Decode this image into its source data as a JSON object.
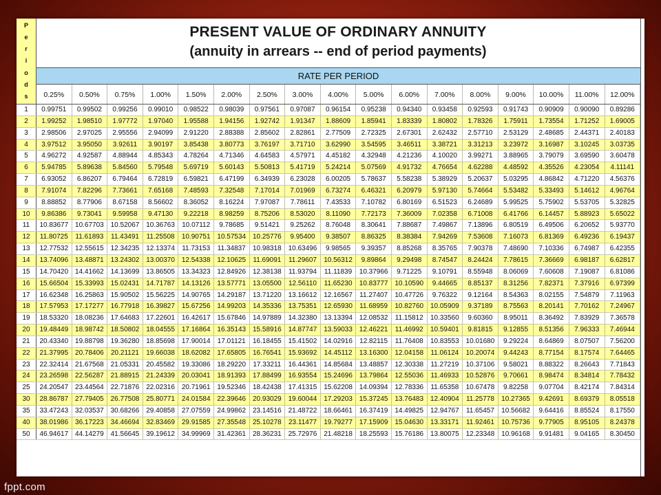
{
  "title": {
    "line1": "PRESENT VALUE OF ORDINARY ANNUITY",
    "line2": "(annuity in arrears -- end of period payments)"
  },
  "periods_header": [
    "P",
    "e",
    "r",
    "i",
    "o",
    "d",
    "s"
  ],
  "rate_label": "RATE PER PERIOD",
  "rates": [
    "0.25%",
    "0.50%",
    "0.75%",
    "1.00%",
    "1.50%",
    "2.00%",
    "2.50%",
    "3.00%",
    "4.00%",
    "5.00%",
    "6.00%",
    "7.00%",
    "8.00%",
    "9.00%",
    "10.00%",
    "11.00%",
    "12.00%"
  ],
  "table": {
    "rows": [
      {
        "period": "1",
        "values": [
          "0.99751",
          "0.99502",
          "0.99256",
          "0.99010",
          "0.98522",
          "0.98039",
          "0.97561",
          "0.97087",
          "0.96154",
          "0.95238",
          "0.94340",
          "0.93458",
          "0.92593",
          "0.91743",
          "0.90909",
          "0.90090",
          "0.89286"
        ]
      },
      {
        "period": "2",
        "values": [
          "1.99252",
          "1.98510",
          "1.97772",
          "1.97040",
          "1.95588",
          "1.94156",
          "1.92742",
          "1.91347",
          "1.88609",
          "1.85941",
          "1.83339",
          "1.80802",
          "1.78326",
          "1.75911",
          "1.73554",
          "1.71252",
          "1.69005"
        ]
      },
      {
        "period": "3",
        "values": [
          "2.98506",
          "2.97025",
          "2.95556",
          "2.94099",
          "2.91220",
          "2.88388",
          "2.85602",
          "2.82861",
          "2.77509",
          "2.72325",
          "2.67301",
          "2.62432",
          "2.57710",
          "2.53129",
          "2.48685",
          "2.44371",
          "2.40183"
        ]
      },
      {
        "period": "4",
        "values": [
          "3.97512",
          "3.95050",
          "3.92611",
          "3.90197",
          "3.85438",
          "3.80773",
          "3.76197",
          "3.71710",
          "3.62990",
          "3.54595",
          "3.46511",
          "3.38721",
          "3.31213",
          "3.23972",
          "3.16987",
          "3.10245",
          "3.03735"
        ]
      },
      {
        "period": "5",
        "values": [
          "4.96272",
          "4.92587",
          "4.88944",
          "4.85343",
          "4.78264",
          "4.71346",
          "4.64583",
          "4.57971",
          "4.45182",
          "4.32948",
          "4.21236",
          "4.10020",
          "3.99271",
          "3.88965",
          "3.79079",
          "3.69590",
          "3.60478"
        ]
      },
      {
        "period": "6",
        "values": [
          "5.94785",
          "5.89638",
          "5.84560",
          "5.79548",
          "5.69719",
          "5.60143",
          "5.50813",
          "5.41719",
          "5.24214",
          "5.07569",
          "4.91732",
          "4.76654",
          "4.62288",
          "4.48592",
          "4.35526",
          "4.23054",
          "4.11141"
        ]
      },
      {
        "period": "7",
        "values": [
          "6.93052",
          "6.86207",
          "6.79464",
          "6.72819",
          "6.59821",
          "6.47199",
          "6.34939",
          "6.23028",
          "6.00205",
          "5.78637",
          "5.58238",
          "5.38929",
          "5.20637",
          "5.03295",
          "4.86842",
          "4.71220",
          "4.56376"
        ]
      },
      {
        "period": "8",
        "values": [
          "7.91074",
          "7.82296",
          "7.73661",
          "7.65168",
          "7.48593",
          "7.32548",
          "7.17014",
          "7.01969",
          "6.73274",
          "6.46321",
          "6.20979",
          "5.97130",
          "5.74664",
          "5.53482",
          "5.33493",
          "5.14612",
          "4.96764"
        ]
      },
      {
        "period": "9",
        "values": [
          "8.88852",
          "8.77906",
          "8.67158",
          "8.56602",
          "8.36052",
          "8.16224",
          "7.97087",
          "7.78611",
          "7.43533",
          "7.10782",
          "6.80169",
          "6.51523",
          "6.24689",
          "5.99525",
          "5.75902",
          "5.53705",
          "5.32825"
        ]
      },
      {
        "period": "10",
        "values": [
          "9.86386",
          "9.73041",
          "9.59958",
          "9.47130",
          "9.22218",
          "8.98259",
          "8.75206",
          "8.53020",
          "8.11090",
          "7.72173",
          "7.36009",
          "7.02358",
          "6.71008",
          "6.41766",
          "6.14457",
          "5.88923",
          "5.65022"
        ]
      },
      {
        "period": "11",
        "values": [
          "10.83677",
          "10.67703",
          "10.52067",
          "10.36763",
          "10.07112",
          "9.78685",
          "9.51421",
          "9.25262",
          "8.76048",
          "8.30641",
          "7.88687",
          "7.49867",
          "7.13896",
          "6.80519",
          "6.49506",
          "6.20652",
          "5.93770"
        ]
      },
      {
        "period": "12",
        "values": [
          "11.80725",
          "11.61893",
          "11.43491",
          "11.25508",
          "10.90751",
          "10.57534",
          "10.25776",
          "9.95400",
          "9.38507",
          "8.86325",
          "8.38384",
          "7.94269",
          "7.53608",
          "7.16073",
          "6.81369",
          "6.49236",
          "6.19437"
        ]
      },
      {
        "period": "13",
        "values": [
          "12.77532",
          "12.55615",
          "12.34235",
          "12.13374",
          "11.73153",
          "11.34837",
          "10.98318",
          "10.63496",
          "9.98565",
          "9.39357",
          "8.85268",
          "8.35765",
          "7.90378",
          "7.48690",
          "7.10336",
          "6.74987",
          "6.42355"
        ]
      },
      {
        "period": "14",
        "values": [
          "13.74096",
          "13.48871",
          "13.24302",
          "13.00370",
          "12.54338",
          "12.10625",
          "11.69091",
          "11.29607",
          "10.56312",
          "9.89864",
          "9.29498",
          "8.74547",
          "8.24424",
          "7.78615",
          "7.36669",
          "6.98187",
          "6.62817"
        ]
      },
      {
        "period": "15",
        "values": [
          "14.70420",
          "14.41662",
          "14.13699",
          "13.86505",
          "13.34323",
          "12.84926",
          "12.38138",
          "11.93794",
          "11.11839",
          "10.37966",
          "9.71225",
          "9.10791",
          "8.55948",
          "8.06069",
          "7.60608",
          "7.19087",
          "6.81086"
        ]
      },
      {
        "period": "16",
        "values": [
          "15.66504",
          "15.33993",
          "15.02431",
          "14.71787",
          "14.13126",
          "13.57771",
          "13.05500",
          "12.56110",
          "11.65230",
          "10.83777",
          "10.10590",
          "9.44665",
          "8.85137",
          "8.31256",
          "7.82371",
          "7.37916",
          "6.97399"
        ]
      },
      {
        "period": "17",
        "values": [
          "16.62348",
          "16.25863",
          "15.90502",
          "15.56225",
          "14.90765",
          "14.29187",
          "13.71220",
          "13.16612",
          "12.16567",
          "11.27407",
          "10.47726",
          "9.76322",
          "9.12164",
          "8.54363",
          "8.02155",
          "7.54879",
          "7.11963"
        ]
      },
      {
        "period": "18",
        "values": [
          "17.57953",
          "17.17277",
          "16.77918",
          "16.39827",
          "15.67256",
          "14.99203",
          "14.35336",
          "13.75351",
          "12.65930",
          "11.68959",
          "10.82760",
          "10.05909",
          "9.37189",
          "8.75563",
          "8.20141",
          "7.70162",
          "7.24967"
        ]
      },
      {
        "period": "19",
        "values": [
          "18.53320",
          "18.08236",
          "17.64683",
          "17.22601",
          "16.42617",
          "15.67846",
          "14.97889",
          "14.32380",
          "13.13394",
          "12.08532",
          "11.15812",
          "10.33560",
          "9.60360",
          "8.95011",
          "8.36492",
          "7.83929",
          "7.36578"
        ]
      },
      {
        "period": "20",
        "values": [
          "19.48449",
          "18.98742",
          "18.50802",
          "18.04555",
          "17.16864",
          "16.35143",
          "15.58916",
          "14.87747",
          "13.59033",
          "12.46221",
          "11.46992",
          "10.59401",
          "9.81815",
          "9.12855",
          "8.51356",
          "7.96333",
          "7.46944"
        ]
      },
      {
        "period": "21",
        "values": [
          "20.43340",
          "19.88798",
          "19.36280",
          "18.85698",
          "17.90014",
          "17.01121",
          "16.18455",
          "15.41502",
          "14.02916",
          "12.82115",
          "11.76408",
          "10.83553",
          "10.01680",
          "9.29224",
          "8.64869",
          "8.07507",
          "7.56200"
        ]
      },
      {
        "period": "22",
        "values": [
          "21.37995",
          "20.78406",
          "20.21121",
          "19.66038",
          "18.62082",
          "17.65805",
          "16.76541",
          "15.93692",
          "14.45112",
          "13.16300",
          "12.04158",
          "11.06124",
          "10.20074",
          "9.44243",
          "8.77154",
          "8.17574",
          "7.64465"
        ]
      },
      {
        "period": "23",
        "values": [
          "22.32414",
          "21.67568",
          "21.05331",
          "20.45582",
          "19.33086",
          "18.29220",
          "17.33211",
          "16.44361",
          "14.85684",
          "13.48857",
          "12.30338",
          "11.27219",
          "10.37106",
          "9.58021",
          "8.88322",
          "8.26643",
          "7.71843"
        ]
      },
      {
        "period": "24",
        "values": [
          "23.26598",
          "22.56287",
          "21.88915",
          "21.24339",
          "20.03041",
          "18.91393",
          "17.88499",
          "16.93554",
          "15.24696",
          "13.79864",
          "12.55036",
          "11.46933",
          "10.52876",
          "9.70661",
          "8.98474",
          "8.34814",
          "7.78432"
        ]
      },
      {
        "period": "25",
        "values": [
          "24.20547",
          "23.44564",
          "22.71876",
          "22.02316",
          "20.71961",
          "19.52346",
          "18.42438",
          "17.41315",
          "15.62208",
          "14.09394",
          "12.78336",
          "11.65358",
          "10.67478",
          "9.82258",
          "9.07704",
          "8.42174",
          "7.84314"
        ]
      },
      {
        "period": "30",
        "values": [
          "28.86787",
          "27.79405",
          "26.77508",
          "25.80771",
          "24.01584",
          "22.39646",
          "20.93029",
          "19.60044",
          "17.29203",
          "15.37245",
          "13.76483",
          "12.40904",
          "11.25778",
          "10.27365",
          "9.42691",
          "8.69379",
          "8.05518"
        ]
      },
      {
        "period": "35",
        "values": [
          "33.47243",
          "32.03537",
          "30.68266",
          "29.40858",
          "27.07559",
          "24.99862",
          "23.14516",
          "21.48722",
          "18.66461",
          "16.37419",
          "14.49825",
          "12.94767",
          "11.65457",
          "10.56682",
          "9.64416",
          "8.85524",
          "8.17550"
        ]
      },
      {
        "period": "40",
        "values": [
          "38.01986",
          "36.17223",
          "34.46694",
          "32.83469",
          "29.91585",
          "27.35548",
          "25.10278",
          "23.11477",
          "19.79277",
          "17.15909",
          "15.04630",
          "13.33171",
          "11.92461",
          "10.75736",
          "9.77905",
          "8.95105",
          "8.24378"
        ]
      },
      {
        "period": "50",
        "values": [
          "46.94617",
          "44.14279",
          "41.56645",
          "39.19612",
          "34.99969",
          "31.42361",
          "28.36231",
          "25.72976",
          "21.48218",
          "18.25593",
          "15.76186",
          "13.80075",
          "12.23348",
          "10.96168",
          "9.91481",
          "9.04165",
          "8.30450"
        ]
      }
    ]
  },
  "footer": "fppt.com",
  "colors": {
    "background": "#9a2412",
    "row_highlight": "#ffff9c",
    "rate_header": "#a9d6f0"
  }
}
